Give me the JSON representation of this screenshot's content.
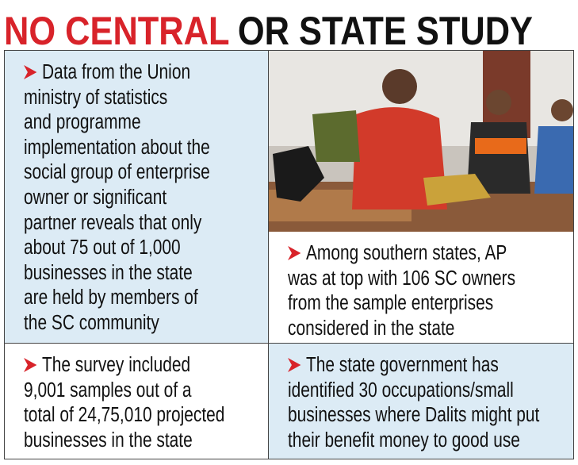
{
  "title": {
    "part1": "NO CENTRAL",
    "part2": "OR STATE STUDY"
  },
  "cells": [
    {
      "lines": [
        "Data from the Union",
        "ministry of statistics",
        "and programme",
        "implementation about the",
        "social group of enterprise",
        "owner or significant",
        "partner reveals that only",
        "about 75 out of 1,000",
        "businesses in the state",
        "are held by members of",
        "the SC community"
      ]
    },
    {
      "lines": [
        "Among southern states, AP",
        "was at top with 106 SC owners",
        "from the sample enterprises",
        "considered in the state"
      ]
    },
    {
      "lines": [
        "The survey included",
        "9,001 samples out of a",
        "total of 24,75,010 projected",
        "businesses in the state"
      ]
    },
    {
      "lines": [
        "The state government has",
        "identified 30 occupations/small",
        "businesses where Dalits might put",
        "their benefit money to good use"
      ]
    }
  ]
}
